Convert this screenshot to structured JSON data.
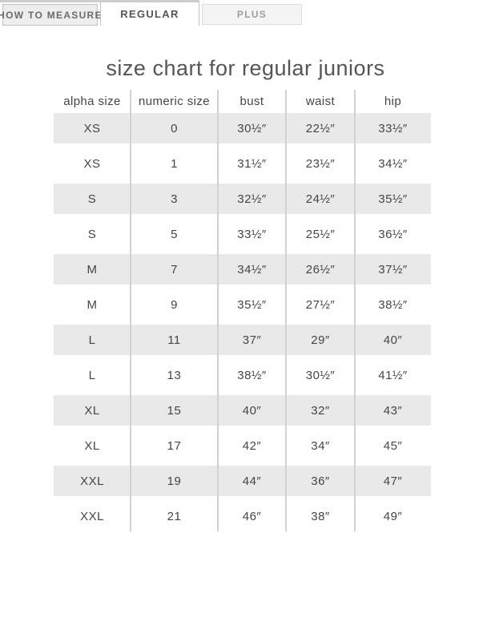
{
  "tabs": [
    {
      "label": "HOW TO MEASURE",
      "active": false
    },
    {
      "label": "REGULAR",
      "active": true
    },
    {
      "label": "PLUS",
      "active": false
    }
  ],
  "title": "size chart for regular juniors",
  "table": {
    "columns": [
      "alpha size",
      "numeric size",
      "bust",
      "waist",
      "hip"
    ],
    "rows": [
      [
        "XS",
        "0",
        "30½″",
        "22½″",
        "33½″"
      ],
      [
        "XS",
        "1",
        "31½″",
        "23½″",
        "34½″"
      ],
      [
        "S",
        "3",
        "32½″",
        "24½″",
        "35½″"
      ],
      [
        "S",
        "5",
        "33½″",
        "25½″",
        "36½″"
      ],
      [
        "M",
        "7",
        "34½″",
        "26½″",
        "37½″"
      ],
      [
        "M",
        "9",
        "35½″",
        "27½″",
        "38½″"
      ],
      [
        "L",
        "11",
        "37″",
        "29″",
        "40″"
      ],
      [
        "L",
        "13",
        "38½″",
        "30½″",
        "41½″"
      ],
      [
        "XL",
        "15",
        "40″",
        "32″",
        "43″"
      ],
      [
        "XL",
        "17",
        "42″",
        "34″",
        "45″"
      ],
      [
        "XXL",
        "19",
        "44″",
        "36″",
        "47″"
      ],
      [
        "XXL",
        "21",
        "46″",
        "38″",
        "49″"
      ]
    ]
  },
  "colors": {
    "row_stripe": "#e9e9e9",
    "column_divider": "#d2d2d2",
    "tab_strip": "#cdcdcd",
    "active_tab_bg": "#ffffff"
  }
}
